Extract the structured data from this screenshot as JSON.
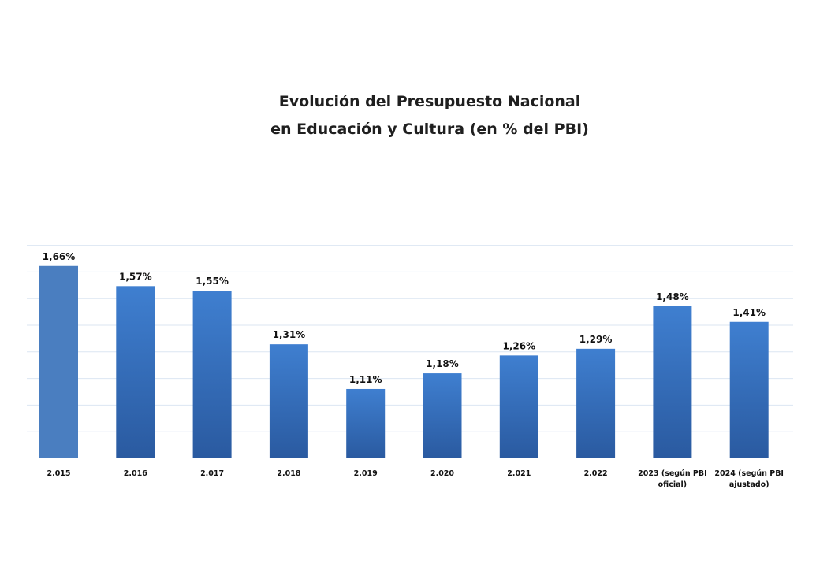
{
  "chart_data": {
    "type": "bar",
    "title": [
      "Evolución del Presupuesto Nacional",
      "en Educación y Cultura (en % del PBI)"
    ],
    "categories": [
      [
        "2.015"
      ],
      [
        "2.016"
      ],
      [
        "2.017"
      ],
      [
        "2.018"
      ],
      [
        "2.019"
      ],
      [
        "2.020"
      ],
      [
        "2.021"
      ],
      [
        "2.022"
      ],
      [
        "2023 (según PBI",
        "oficial)"
      ],
      [
        "2024 (según PBI",
        "ajustado)"
      ]
    ],
    "values": [
      1.66,
      1.57,
      1.55,
      1.31,
      1.11,
      1.18,
      1.26,
      1.29,
      1.48,
      1.41
    ],
    "data_labels": [
      "1,66%",
      "1,57%",
      "1,55%",
      "1,31%",
      "1,11%",
      "1,18%",
      "1,26%",
      "1,29%",
      "1,48%",
      "1,41%"
    ],
    "ylim": [
      0.8,
      1.8
    ],
    "y_axis_visible": false,
    "grid": true,
    "legend": "none",
    "colors": {
      "bar_top": "#3f7fd0",
      "bar_bottom": "#2a5aa0",
      "first_bar": "#4a7ec0",
      "grid": "#dbe6f2"
    }
  }
}
